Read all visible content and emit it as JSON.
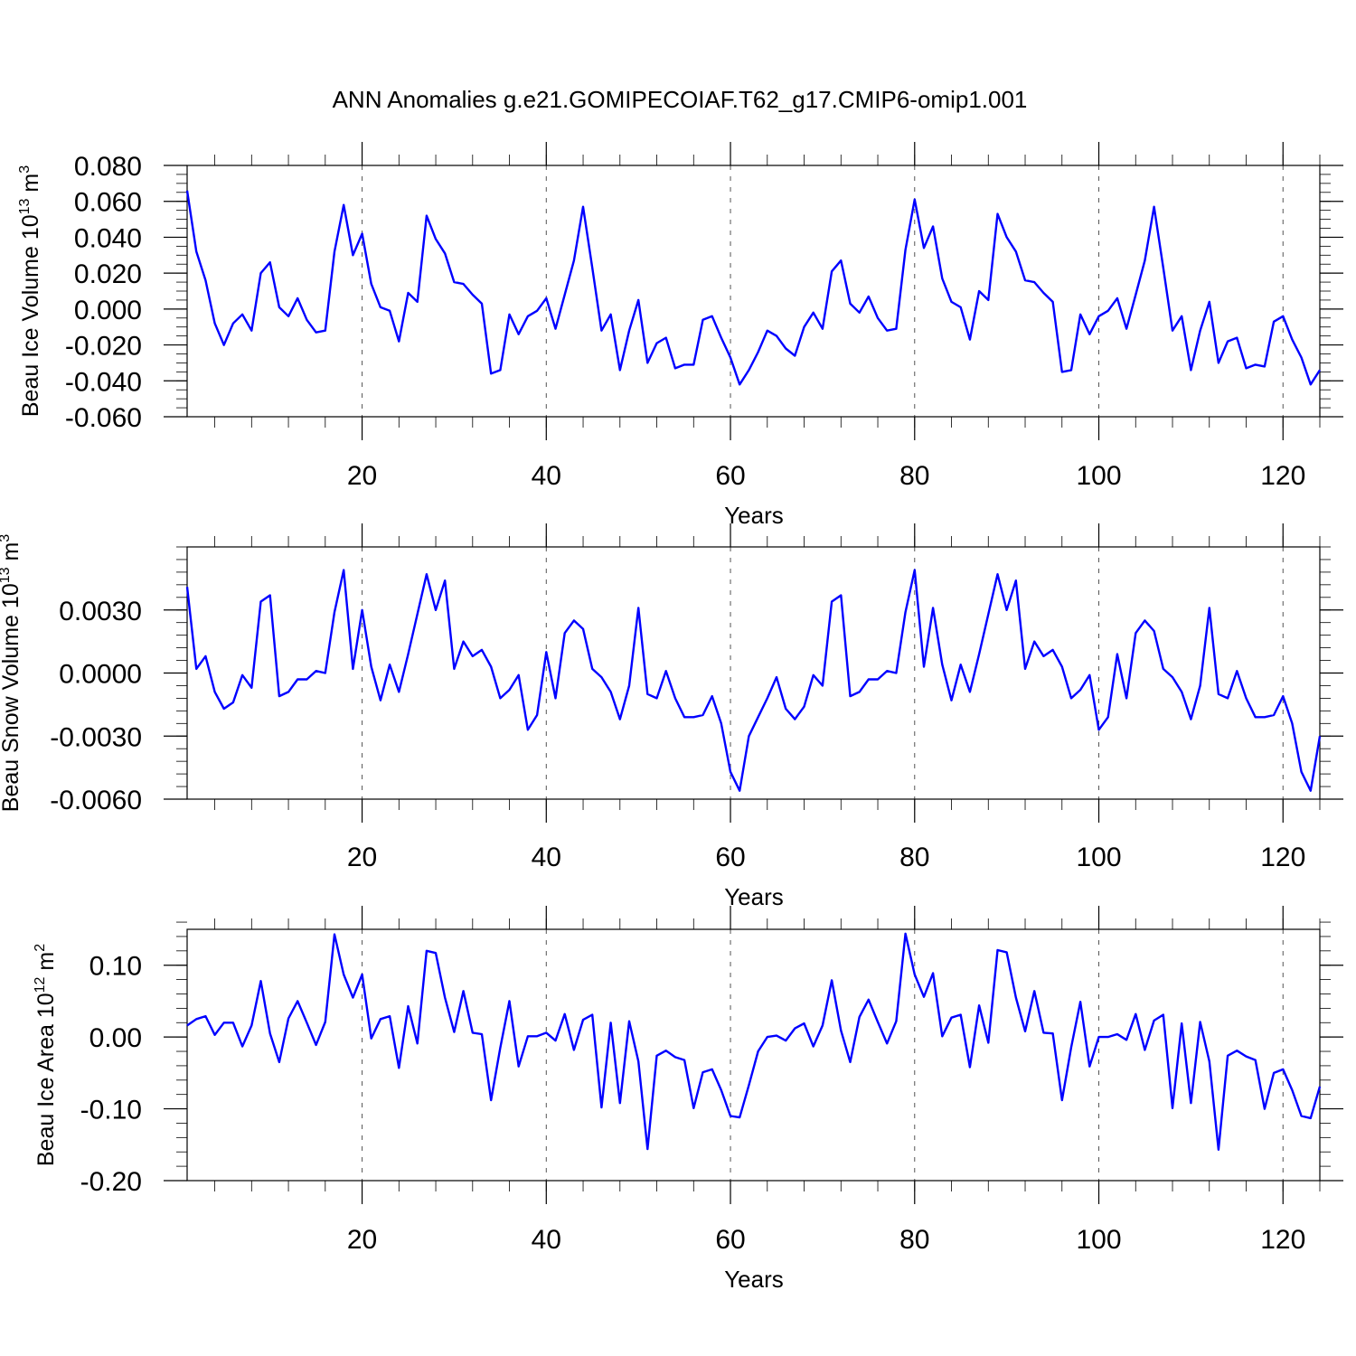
{
  "title": "ANN Anomalies g.e21.GOMIPECOIAF.T62_g17.CMIP6-omip1.001",
  "colors": {
    "line": "#0000ff",
    "frame": "#000000",
    "grid": "#555555"
  },
  "chart_data": [
    {
      "type": "line",
      "ylabel": "Beau Ice Volume 10",
      "ylabel_sup": "13",
      "ylabel_unit": " m",
      "ylabel_unit_sup": "3",
      "xlabel": "Years",
      "xlim": [
        1,
        124
      ],
      "ylim": [
        -0.06,
        0.08
      ],
      "xticks": [
        20,
        40,
        60,
        80,
        100,
        120
      ],
      "xtick_labels": [
        "20",
        "40",
        "60",
        "80",
        "100",
        "120"
      ],
      "yticks": [
        -0.06,
        -0.04,
        -0.02,
        0.0,
        0.02,
        0.04,
        0.06,
        0.08
      ],
      "ytick_labels": [
        "-0.060",
        "-0.040",
        "-0.020",
        "0.000",
        "0.020",
        "0.040",
        "0.060",
        "0.080"
      ],
      "yminor_step": 0.005,
      "series": [
        {
          "name": "Beau Ice Volume",
          "x_start": 1,
          "values": [
            0.066,
            0.032,
            0.016,
            -0.008,
            -0.02,
            -0.008,
            -0.003,
            -0.012,
            0.02,
            0.026,
            0.001,
            -0.004,
            0.006,
            -0.006,
            -0.013,
            -0.012,
            0.032,
            0.058,
            0.03,
            0.042,
            0.014,
            0.001,
            -0.001,
            -0.018,
            0.009,
            0.004,
            0.052,
            0.039,
            0.031,
            0.015,
            0.014,
            0.008,
            0.003,
            -0.036,
            -0.034,
            -0.003,
            -0.014,
            -0.004,
            -0.001,
            0.006,
            -0.011,
            0.008,
            0.027,
            0.057,
            0.023,
            -0.012,
            -0.003,
            -0.034,
            -0.012,
            0.005,
            -0.03,
            -0.019,
            -0.016,
            -0.033,
            -0.031,
            -0.031,
            -0.006,
            -0.004,
            -0.016,
            -0.027,
            -0.042,
            -0.034,
            -0.024,
            -0.012,
            -0.015,
            -0.022,
            -0.026,
            -0.01,
            -0.002,
            -0.011,
            0.021,
            0.027,
            0.003,
            -0.002,
            0.007,
            -0.005,
            -0.012,
            -0.011,
            0.033,
            0.061,
            0.034,
            0.046,
            0.017,
            0.004,
            0.001,
            -0.017,
            0.01,
            0.005,
            0.053,
            0.04,
            0.032,
            0.016,
            0.015,
            0.009,
            0.004,
            -0.035,
            -0.034,
            -0.003,
            -0.014,
            -0.004,
            -0.001,
            0.006,
            -0.011,
            0.008,
            0.027,
            0.057,
            0.023,
            -0.012,
            -0.004,
            -0.034,
            -0.012,
            0.004,
            -0.03,
            -0.018,
            -0.016,
            -0.033,
            -0.031,
            -0.032,
            -0.007,
            -0.004,
            -0.017,
            -0.027,
            -0.042,
            -0.034
          ]
        }
      ]
    },
    {
      "type": "line",
      "ylabel": "Beau Snow Volume 10",
      "ylabel_sup": "13",
      "ylabel_unit": " m",
      "ylabel_unit_sup": "3",
      "xlabel": "Years",
      "xlim": [
        1,
        124
      ],
      "ylim": [
        -0.006,
        0.006
      ],
      "xticks": [
        20,
        40,
        60,
        80,
        100,
        120
      ],
      "xtick_labels": [
        "20",
        "40",
        "60",
        "80",
        "100",
        "120"
      ],
      "yticks": [
        -0.006,
        -0.003,
        0.0,
        0.003
      ],
      "ytick_labels": [
        "-0.0060",
        "-0.0030",
        "0.0000",
        "0.0030"
      ],
      "yminor_step": 0.0006,
      "series": [
        {
          "name": "Beau Snow Volume",
          "x_start": 1,
          "values": [
            0.0041,
            0.0002,
            0.0008,
            -0.0009,
            -0.0017,
            -0.0014,
            -0.0001,
            -0.0007,
            0.0034,
            0.0037,
            -0.0011,
            -0.0009,
            -0.0003,
            -0.0003,
            0.0001,
            0.0,
            0.0029,
            0.0049,
            0.0002,
            0.003,
            0.0003,
            -0.0013,
            0.0004,
            -0.0009,
            0.0009,
            0.0028,
            0.0047,
            0.003,
            0.0044,
            0.0002,
            0.0015,
            0.0008,
            0.0011,
            0.0003,
            -0.0012,
            -0.0008,
            -0.0001,
            -0.0027,
            -0.002,
            0.001,
            -0.0012,
            0.0019,
            0.0025,
            0.0021,
            0.0002,
            -0.0002,
            -0.0009,
            -0.0022,
            -0.0006,
            0.0031,
            -0.001,
            -0.0012,
            0.0001,
            -0.0012,
            -0.0021,
            -0.0021,
            -0.002,
            -0.0011,
            -0.0024,
            -0.0047,
            -0.0056,
            -0.003,
            -0.0021,
            -0.0012,
            -0.0002,
            -0.0017,
            -0.0022,
            -0.0016,
            -0.0001,
            -0.0006,
            0.0034,
            0.0037,
            -0.0011,
            -0.0009,
            -0.0003,
            -0.0003,
            0.0001,
            0.0,
            0.0029,
            0.0049,
            0.0003,
            0.0031,
            0.0004,
            -0.0013,
            0.0004,
            -0.0009,
            0.0009,
            0.0028,
            0.0047,
            0.003,
            0.0044,
            0.0002,
            0.0015,
            0.0008,
            0.0011,
            0.0003,
            -0.0012,
            -0.0008,
            -0.0001,
            -0.0027,
            -0.0021,
            0.0009,
            -0.0012,
            0.0019,
            0.0025,
            0.002,
            0.0002,
            -0.0002,
            -0.0009,
            -0.0022,
            -0.0006,
            0.0031,
            -0.001,
            -0.0012,
            0.0001,
            -0.0012,
            -0.0021,
            -0.0021,
            -0.002,
            -0.0011,
            -0.0024,
            -0.0047,
            -0.0056,
            -0.003
          ]
        }
      ]
    },
    {
      "type": "line",
      "ylabel": "Beau Ice Area 10",
      "ylabel_sup": "12",
      "ylabel_unit": " m",
      "ylabel_unit_sup": "2",
      "xlabel": "Years",
      "xlim": [
        1,
        124
      ],
      "ylim": [
        -0.2,
        0.15
      ],
      "xticks": [
        20,
        40,
        60,
        80,
        100,
        120
      ],
      "xtick_labels": [
        "20",
        "40",
        "60",
        "80",
        "100",
        "120"
      ],
      "yticks": [
        -0.2,
        -0.1,
        0.0,
        0.1
      ],
      "ytick_labels": [
        "-0.20",
        "-0.10",
        "0.00",
        "0.10"
      ],
      "yminor_step": 0.02,
      "series": [
        {
          "name": "Beau Ice Area",
          "x_start": 1,
          "values": [
            0.016,
            0.025,
            0.029,
            0.003,
            0.02,
            0.02,
            -0.013,
            0.016,
            0.078,
            0.005,
            -0.035,
            0.026,
            0.05,
            0.02,
            -0.011,
            0.021,
            0.143,
            0.087,
            0.055,
            0.087,
            -0.002,
            0.025,
            0.029,
            -0.043,
            0.043,
            -0.009,
            0.12,
            0.117,
            0.055,
            0.007,
            0.064,
            0.006,
            0.004,
            -0.088,
            -0.015,
            0.05,
            -0.041,
            0.001,
            0.001,
            0.006,
            -0.005,
            0.032,
            -0.018,
            0.024,
            0.031,
            -0.098,
            0.02,
            -0.092,
            0.022,
            -0.034,
            -0.156,
            -0.026,
            -0.019,
            -0.028,
            -0.032,
            -0.099,
            -0.049,
            -0.045,
            -0.074,
            -0.11,
            -0.112,
            -0.067,
            -0.02,
            0.0,
            0.002,
            -0.005,
            0.012,
            0.019,
            -0.013,
            0.016,
            0.079,
            0.009,
            -0.035,
            0.028,
            0.052,
            0.021,
            -0.009,
            0.022,
            0.144,
            0.087,
            0.056,
            0.089,
            0.001,
            0.027,
            0.031,
            -0.042,
            0.044,
            -0.008,
            0.121,
            0.118,
            0.055,
            0.008,
            0.064,
            0.006,
            0.005,
            -0.088,
            -0.014,
            0.049,
            -0.041,
            0.0,
            0.0,
            0.004,
            -0.004,
            0.032,
            -0.018,
            0.023,
            0.031,
            -0.099,
            0.019,
            -0.092,
            0.021,
            -0.034,
            -0.157,
            -0.026,
            -0.019,
            -0.027,
            -0.032,
            -0.1,
            -0.05,
            -0.045,
            -0.074,
            -0.11,
            -0.113,
            -0.069
          ]
        }
      ]
    }
  ]
}
